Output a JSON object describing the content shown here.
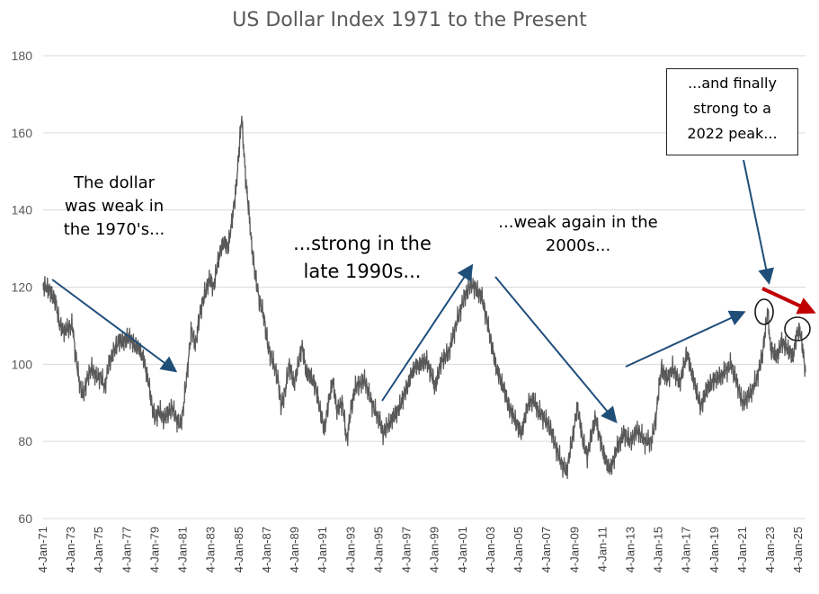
{
  "chart_data": {
    "type": "line",
    "title": "US Dollar Index 1971 to the Present",
    "xlabel": "",
    "ylabel": "",
    "ylim": [
      60,
      180
    ],
    "yticks": [
      60,
      80,
      100,
      120,
      140,
      160,
      180
    ],
    "grid": "horizontal",
    "xticks": [
      "4-Jan-71",
      "4-Jan-73",
      "4-Jan-75",
      "4-Jan-77",
      "4-Jan-79",
      "4-Jan-81",
      "4-Jan-83",
      "4-Jan-85",
      "4-Jan-87",
      "4-Jan-89",
      "4-Jan-91",
      "4-Jan-93",
      "4-Jan-95",
      "4-Jan-97",
      "4-Jan-99",
      "4-Jan-01",
      "4-Jan-03",
      "4-Jan-05",
      "4-Jan-07",
      "4-Jan-09",
      "4-Jan-11",
      "4-Jan-13",
      "4-Jan-15",
      "4-Jan-17",
      "4-Jan-19",
      "4-Jan-21",
      "4-Jan-23",
      "4-Jan-25"
    ],
    "series": [
      {
        "color": "#595959",
        "points": [
          [
            1971.0,
            120.5
          ],
          [
            1971.5,
            119
          ],
          [
            1971.9,
            116
          ],
          [
            1972.2,
            110
          ],
          [
            1972.5,
            108.5
          ],
          [
            1972.8,
            109.5
          ],
          [
            1973.1,
            110
          ],
          [
            1973.3,
            103
          ],
          [
            1973.6,
            95
          ],
          [
            1973.9,
            92
          ],
          [
            1974.2,
            97
          ],
          [
            1974.5,
            99
          ],
          [
            1974.8,
            96.5
          ],
          [
            1975.1,
            97
          ],
          [
            1975.4,
            94
          ],
          [
            1975.7,
            100
          ],
          [
            1976.0,
            103
          ],
          [
            1976.4,
            106
          ],
          [
            1976.8,
            106
          ],
          [
            1977.2,
            107
          ],
          [
            1977.5,
            105
          ],
          [
            1977.9,
            104
          ],
          [
            1978.2,
            101
          ],
          [
            1978.5,
            96
          ],
          [
            1978.8,
            89
          ],
          [
            1979.0,
            86
          ],
          [
            1979.3,
            88
          ],
          [
            1979.6,
            86
          ],
          [
            1979.9,
            87
          ],
          [
            1980.2,
            89
          ],
          [
            1980.5,
            86
          ],
          [
            1980.8,
            84
          ],
          [
            1981.0,
            88
          ],
          [
            1981.3,
            98
          ],
          [
            1981.6,
            109
          ],
          [
            1981.9,
            105
          ],
          [
            1982.2,
            113
          ],
          [
            1982.6,
            119
          ],
          [
            1982.9,
            122
          ],
          [
            1983.2,
            120
          ],
          [
            1983.5,
            127
          ],
          [
            1983.9,
            132
          ],
          [
            1984.2,
            130
          ],
          [
            1984.5,
            137
          ],
          [
            1984.8,
            146
          ],
          [
            1985.0,
            155
          ],
          [
            1985.17,
            164
          ],
          [
            1985.3,
            158
          ],
          [
            1985.5,
            147
          ],
          [
            1985.7,
            140
          ],
          [
            1985.9,
            131
          ],
          [
            1986.2,
            122
          ],
          [
            1986.5,
            116
          ],
          [
            1986.8,
            112
          ],
          [
            1987.1,
            104
          ],
          [
            1987.4,
            101
          ],
          [
            1987.8,
            96
          ],
          [
            1988.0,
            89
          ],
          [
            1988.3,
            93
          ],
          [
            1988.6,
            100
          ],
          [
            1988.9,
            95
          ],
          [
            1989.2,
            99
          ],
          [
            1989.5,
            105
          ],
          [
            1989.8,
            98
          ],
          [
            1990.1,
            97
          ],
          [
            1990.5,
            94
          ],
          [
            1990.8,
            88
          ],
          [
            1991.1,
            83
          ],
          [
            1991.4,
            90
          ],
          [
            1991.7,
            96
          ],
          [
            1992.0,
            88
          ],
          [
            1992.4,
            90
          ],
          [
            1992.7,
            80
          ],
          [
            1993.0,
            88
          ],
          [
            1993.3,
            94
          ],
          [
            1993.7,
            95
          ],
          [
            1994.0,
            96
          ],
          [
            1994.3,
            92
          ],
          [
            1994.7,
            88
          ],
          [
            1995.0,
            86
          ],
          [
            1995.3,
            82
          ],
          [
            1995.6,
            84
          ],
          [
            1996.0,
            86
          ],
          [
            1996.5,
            89
          ],
          [
            1997.0,
            94
          ],
          [
            1997.5,
            99
          ],
          [
            1998.0,
            100
          ],
          [
            1998.4,
            101
          ],
          [
            1998.8,
            97
          ],
          [
            1999.0,
            94
          ],
          [
            1999.5,
            101
          ],
          [
            2000.0,
            103
          ],
          [
            2000.5,
            110
          ],
          [
            2000.9,
            115
          ],
          [
            2001.2,
            118
          ],
          [
            2001.6,
            121
          ],
          [
            2002.0,
            119
          ],
          [
            2002.3,
            118
          ],
          [
            2002.7,
            112
          ],
          [
            2003.0,
            106
          ],
          [
            2003.4,
            99
          ],
          [
            2003.9,
            94
          ],
          [
            2004.3,
            89
          ],
          [
            2004.8,
            85
          ],
          [
            2005.2,
            82
          ],
          [
            2005.6,
            89
          ],
          [
            2006.0,
            91
          ],
          [
            2006.4,
            88
          ],
          [
            2006.8,
            86
          ],
          [
            2007.2,
            84
          ],
          [
            2007.7,
            78
          ],
          [
            2008.1,
            74
          ],
          [
            2008.4,
            72
          ],
          [
            2008.8,
            80
          ],
          [
            2009.2,
            89
          ],
          [
            2009.6,
            80
          ],
          [
            2009.9,
            76
          ],
          [
            2010.2,
            82
          ],
          [
            2010.5,
            86
          ],
          [
            2010.9,
            79
          ],
          [
            2011.3,
            74
          ],
          [
            2011.6,
            73
          ],
          [
            2012.0,
            78
          ],
          [
            2012.5,
            82
          ],
          [
            2013.0,
            80
          ],
          [
            2013.5,
            83
          ],
          [
            2014.0,
            80
          ],
          [
            2014.5,
            80
          ],
          [
            2014.8,
            86
          ],
          [
            2015.0,
            93
          ],
          [
            2015.2,
            99
          ],
          [
            2015.6,
            96
          ],
          [
            2016.0,
            99
          ],
          [
            2016.5,
            95
          ],
          [
            2016.9,
            101
          ],
          [
            2017.0,
            103
          ],
          [
            2017.5,
            96
          ],
          [
            2018.0,
            89
          ],
          [
            2018.5,
            94
          ],
          [
            2019.0,
            96
          ],
          [
            2019.5,
            97
          ],
          [
            2020.2,
            100
          ],
          [
            2020.6,
            95
          ],
          [
            2021.0,
            90
          ],
          [
            2021.5,
            92
          ],
          [
            2022.0,
            96
          ],
          [
            2022.4,
            102
          ],
          [
            2022.8,
            114
          ],
          [
            2023.0,
            104
          ],
          [
            2023.5,
            102
          ],
          [
            2023.8,
            106
          ],
          [
            2024.2,
            104
          ],
          [
            2024.6,
            102
          ],
          [
            2024.9,
            108
          ],
          [
            2025.1,
            109
          ],
          [
            2025.3,
            104
          ],
          [
            2025.5,
            98
          ]
        ]
      }
    ],
    "annotations": [
      {
        "text": "The dollar\nwas weak in\nthe 1970's..."
      },
      {
        "text": "...strong in the\nlate 1990s..."
      },
      {
        "text": "...weak again in the\n2000s..."
      },
      {
        "text": "...and finally\nstrong to a\n2022 peak..."
      }
    ],
    "arrow_color": "#1f4e79",
    "highlight_arrow_color": "#c00000"
  }
}
